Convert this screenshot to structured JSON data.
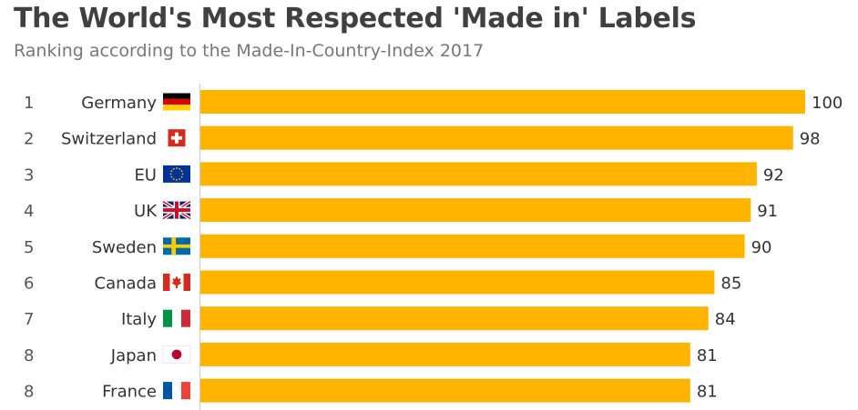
{
  "chart_data": {
    "type": "bar",
    "orientation": "horizontal",
    "title": "The World's Most Respected 'Made in' Labels",
    "subtitle": "Ranking according to the Made-In-Country-Index 2017",
    "ranks": [
      "1",
      "2",
      "3",
      "4",
      "5",
      "6",
      "7",
      "8",
      "8"
    ],
    "categories": [
      "Germany",
      "Switzerland",
      "EU",
      "UK",
      "Sweden",
      "Canada",
      "Italy",
      "Japan",
      "France"
    ],
    "flag_icons": [
      "germany-flag-icon",
      "switzerland-flag-icon",
      "eu-flag-icon",
      "uk-flag-icon",
      "sweden-flag-icon",
      "canada-flag-icon",
      "italy-flag-icon",
      "japan-flag-icon",
      "france-flag-icon"
    ],
    "values": [
      100,
      98,
      92,
      91,
      90,
      85,
      84,
      81,
      81
    ],
    "xlim": [
      0,
      100
    ],
    "bar_color": "#FFB400",
    "grid": false,
    "legend": "none"
  }
}
